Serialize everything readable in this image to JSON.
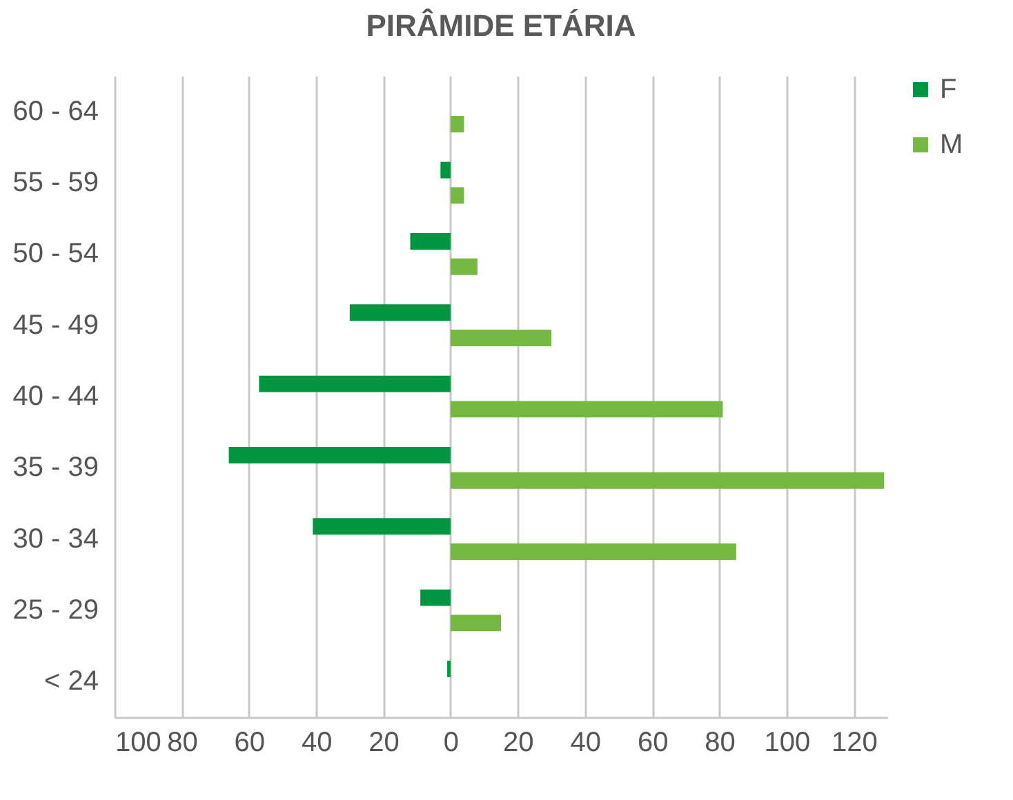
{
  "chart_data": {
    "type": "bar",
    "orientation": "horizontal",
    "title": "PIRÂMIDE ETÁRIA",
    "categories": [
      "60 - 64",
      "55 - 59",
      "50 - 54",
      "45 - 49",
      "40 - 44",
      "35 - 39",
      "30 - 34",
      "25 - 29",
      "< 24"
    ],
    "series": [
      {
        "name": "F",
        "color": "#009641",
        "values": [
          null,
          -3,
          -12,
          -30,
          -57,
          -66,
          -41,
          -9,
          -1
        ]
      },
      {
        "name": "M",
        "color": "#77b843",
        "values": [
          4,
          4,
          8,
          30,
          81,
          129,
          85,
          15,
          null
        ]
      }
    ],
    "xlim": [
      -100,
      130
    ],
    "xticks": [
      {
        "value": -100,
        "label": "100"
      },
      {
        "value": -80,
        "label": "80"
      },
      {
        "value": -60,
        "label": "60"
      },
      {
        "value": -40,
        "label": "40"
      },
      {
        "value": -20,
        "label": "20"
      },
      0,
      20,
      40,
      60,
      80,
      100,
      120
    ],
    "grid": "x",
    "legend": "right"
  }
}
